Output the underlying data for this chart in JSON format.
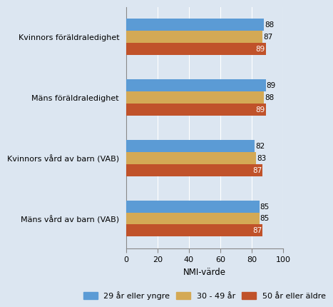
{
  "categories": [
    "Kvinnors föräldraledighet",
    "Mäns föräldraledighet",
    "Kvinnors vård av barn (VAB)",
    "Mäns vård av barn (VAB)"
  ],
  "series": [
    {
      "label": "29 år eller yngre",
      "color": "#5b9bd5",
      "values": [
        88,
        89,
        82,
        85
      ]
    },
    {
      "label": "30 - 49 år",
      "color": "#d4a955",
      "values": [
        87,
        88,
        83,
        85
      ]
    },
    {
      "label": "50 år eller äldre",
      "color": "#c0522a",
      "values": [
        89,
        89,
        87,
        87
      ]
    }
  ],
  "xlabel": "NMI-värde",
  "xlim": [
    0,
    100
  ],
  "xticks": [
    0,
    20,
    40,
    60,
    80,
    100
  ],
  "background_color": "#dce6f1",
  "plot_bg_color": "#dce6f1",
  "bar_height": 0.2,
  "value_fontsize": 7.5,
  "label_fontsize": 8,
  "legend_fontsize": 8,
  "xlabel_fontsize": 8.5
}
